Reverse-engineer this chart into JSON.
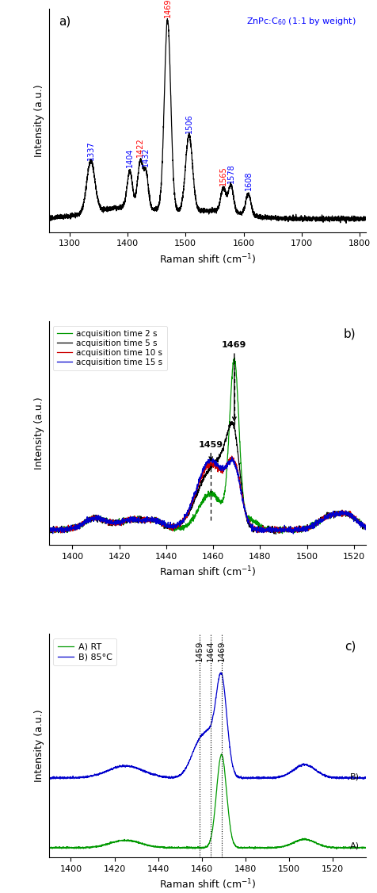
{
  "panel_a": {
    "xlim": [
      1265,
      1810
    ],
    "ylim": [
      -0.02,
      1.15
    ],
    "xlabel": "Raman shift (cm$^{-1}$)",
    "ylabel": "Intensity (a.u.)",
    "label": "a)",
    "peaks_red": [
      1469,
      1422,
      1565
    ],
    "peaks_blue": [
      1337,
      1404,
      1432,
      1506,
      1578,
      1608
    ]
  },
  "panel_b": {
    "xlim": [
      1390,
      1525
    ],
    "ylim": [
      -0.05,
      1.3
    ],
    "xlabel": "Raman shift (cm$^{-1}$)",
    "ylabel": "Intensity (a.u.)",
    "label": "b)",
    "legend": [
      "acquisition time 2 s",
      "acquisition time 5 s",
      "acquisition time 10 s",
      "acquisition time 15 s"
    ],
    "colors": [
      "#009900",
      "#000000",
      "#cc0000",
      "#0000cc"
    ]
  },
  "panel_c": {
    "xlim": [
      1390,
      1535
    ],
    "ylim": [
      -0.05,
      1.4
    ],
    "xlabel": "Raman shift (cm$^{-1}$)",
    "ylabel": "Intensity (a.u.)",
    "label": "c)",
    "legend": [
      "A) RT",
      "B) 85°C"
    ],
    "colors": [
      "#009900",
      "#0000cc"
    ]
  }
}
